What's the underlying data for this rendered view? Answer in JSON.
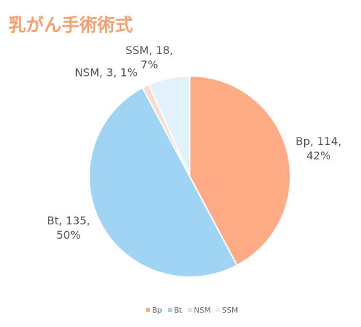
{
  "chart_data": {
    "type": "pie",
    "title": "乳がん手術術式",
    "categories": [
      "Bp",
      "Bt",
      "NSM",
      "SSM"
    ],
    "values": [
      114,
      135,
      3,
      18
    ],
    "value_labels": [
      "Bp, 114, 42%",
      "Bt, 135, 50%",
      "NSM, 3, 1%",
      "SSM, 18, 7%"
    ],
    "colors": [
      "#FFAB85",
      "#A0D4F5",
      "#FADBD0",
      "#E2F2FC"
    ],
    "legend": "bottom"
  }
}
